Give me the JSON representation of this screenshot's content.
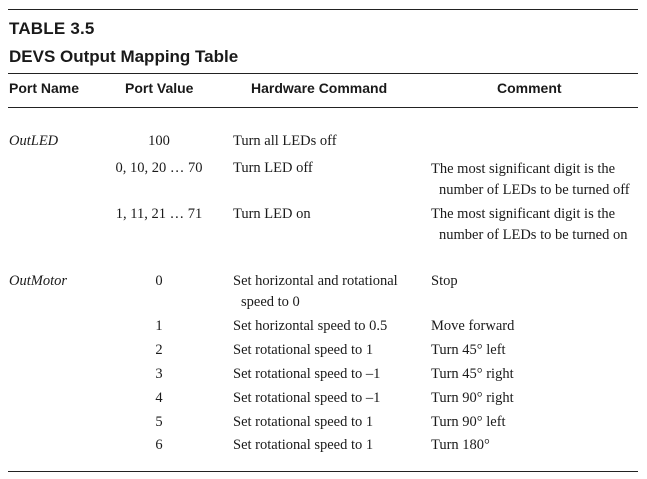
{
  "table": {
    "number": "TABLE 3.5",
    "title": "DEVS Output Mapping Table",
    "headers": {
      "port_name": "Port Name",
      "port_value": "Port Value",
      "hardware_command": "Hardware Command",
      "comment": "Comment"
    },
    "outled": {
      "port": "OutLED",
      "rows": [
        {
          "value": "100",
          "command": "Turn all LEDs off",
          "comment": [
            "",
            ""
          ]
        },
        {
          "value": "0, 10, 20 … 70",
          "command": "Turn LED off",
          "comment": [
            "The most significant digit is the",
            "number of LEDs to be turned off"
          ]
        },
        {
          "value": "1, 11, 21 … 71",
          "command": "Turn LED on",
          "comment": [
            "The most significant digit is the",
            "number of LEDs to be turned on"
          ]
        }
      ]
    },
    "outmotor": {
      "port": "OutMotor",
      "first_row": {
        "value": "0",
        "command": [
          "Set horizontal and rotational",
          "speed to 0"
        ],
        "comment": "Stop"
      },
      "rows": [
        {
          "value": "1",
          "command": "Set horizontal speed to 0.5",
          "comment": "Move forward"
        },
        {
          "value": "2",
          "command": "Set rotational speed to 1",
          "comment": "Turn 45° left"
        },
        {
          "value": "3",
          "command": "Set rotational speed to –1",
          "comment": "Turn 45° right"
        },
        {
          "value": "4",
          "command": "Set rotational speed to –1",
          "comment": "Turn 90° right"
        },
        {
          "value": "5",
          "command": "Set rotational speed to 1",
          "comment": "Turn 90° left"
        },
        {
          "value": "6",
          "command": "Set rotational speed to 1",
          "comment": "Turn 180°"
        }
      ]
    }
  }
}
